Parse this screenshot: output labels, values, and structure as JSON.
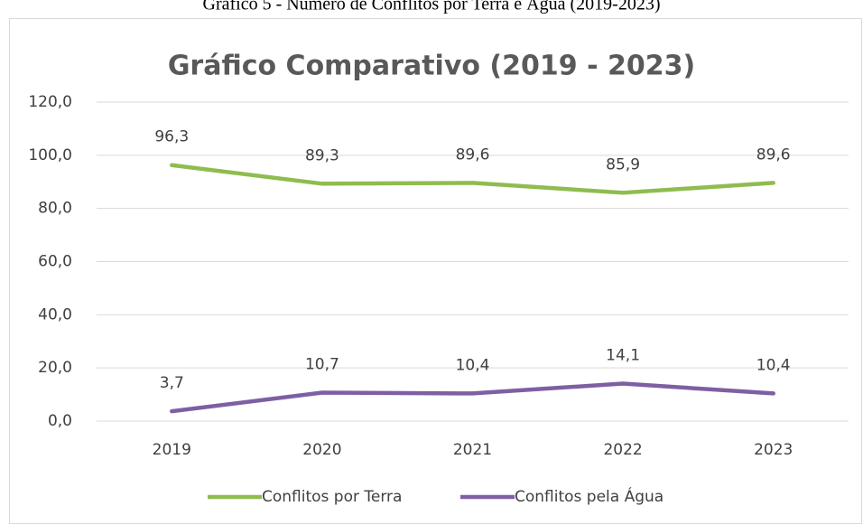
{
  "caption": "Gráfico 5 - Número de Conflitos por Terra e Água (2019-2023)",
  "chart_data": {
    "type": "line",
    "title": "Gráfico Comparativo (2019 - 2023)",
    "categories": [
      "2019",
      "2020",
      "2021",
      "2022",
      "2023"
    ],
    "series": [
      {
        "name": "Conflitos por Terra",
        "color": "#8FBC4F",
        "values": [
          96.3,
          89.3,
          89.6,
          85.9,
          89.6
        ],
        "value_labels": [
          "96,3",
          "89,3",
          "89,6",
          "85,9",
          "89,6"
        ]
      },
      {
        "name": "Conflitos pela Água",
        "color": "#7F5FA3",
        "values": [
          3.7,
          10.7,
          10.4,
          14.1,
          10.4
        ],
        "value_labels": [
          "3,7",
          "10,7",
          "10,4",
          "14,1",
          "10,4"
        ]
      }
    ],
    "ylim": [
      0,
      120
    ],
    "yticks": [
      {
        "value": 0,
        "label": "0,0"
      },
      {
        "value": 20,
        "label": "20,0"
      },
      {
        "value": 40,
        "label": "40,0"
      },
      {
        "value": 60,
        "label": "60,0"
      },
      {
        "value": 80,
        "label": "80,0"
      },
      {
        "value": 100,
        "label": "100,0"
      },
      {
        "value": 120,
        "label": "120,0"
      }
    ],
    "grid": true,
    "legend": "bottom"
  }
}
